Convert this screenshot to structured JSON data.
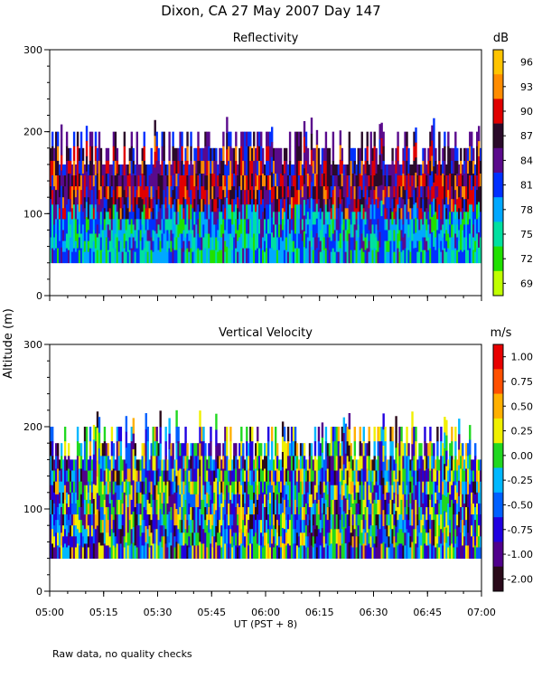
{
  "header": {
    "title": "Dixon, CA 27 May 2007  Day 147",
    "footnote": "Raw data, no quality checks"
  },
  "chart_data": {
    "type": "heatmap",
    "title": "Dixon, CA 27 May 2007  Day 147",
    "ylabel": "Altitude (m)",
    "xlabel": "UT  (PST + 8)",
    "x_ticks": [
      "05:00",
      "05:15",
      "05:30",
      "05:45",
      "06:00",
      "06:15",
      "06:30",
      "06:45",
      "07:00"
    ],
    "x_range": [
      "05:00",
      "07:00"
    ],
    "panels": [
      {
        "name": "reflectivity",
        "title": "Reflectivity",
        "unit": "dB",
        "ylim": [
          0,
          300
        ],
        "y_ticks": [
          "0",
          "100",
          "200",
          "300"
        ],
        "data_base_m": 40,
        "data_top_m": 200,
        "colorbar": {
          "labels": [
            "96",
            "93",
            "90",
            "87",
            "84",
            "81",
            "78",
            "75",
            "72",
            "69"
          ],
          "colors": [
            "#ffc400",
            "#ff8c00",
            "#e00000",
            "#2a0a2a",
            "#5a0a8c",
            "#0030ff",
            "#00a8ff",
            "#00e0a0",
            "#20e000",
            "#c0ff00"
          ]
        }
      },
      {
        "name": "vertical-velocity",
        "title": "Vertical Velocity",
        "unit": "m/s",
        "ylim": [
          0,
          300
        ],
        "y_ticks": [
          "0",
          "100",
          "200",
          "300"
        ],
        "data_base_m": 40,
        "data_top_m": 200,
        "colorbar": {
          "labels": [
            "1.00",
            "0.75",
            "0.50",
            "0.25",
            "0.00",
            "-0.25",
            "-0.50",
            "-0.75",
            "-1.00",
            "-2.00"
          ],
          "colors": [
            "#e80000",
            "#ff5000",
            "#ffb000",
            "#f0f000",
            "#20d820",
            "#00b8ff",
            "#0060ff",
            "#2000e0",
            "#50008c",
            "#2a0a1a"
          ]
        }
      }
    ]
  }
}
